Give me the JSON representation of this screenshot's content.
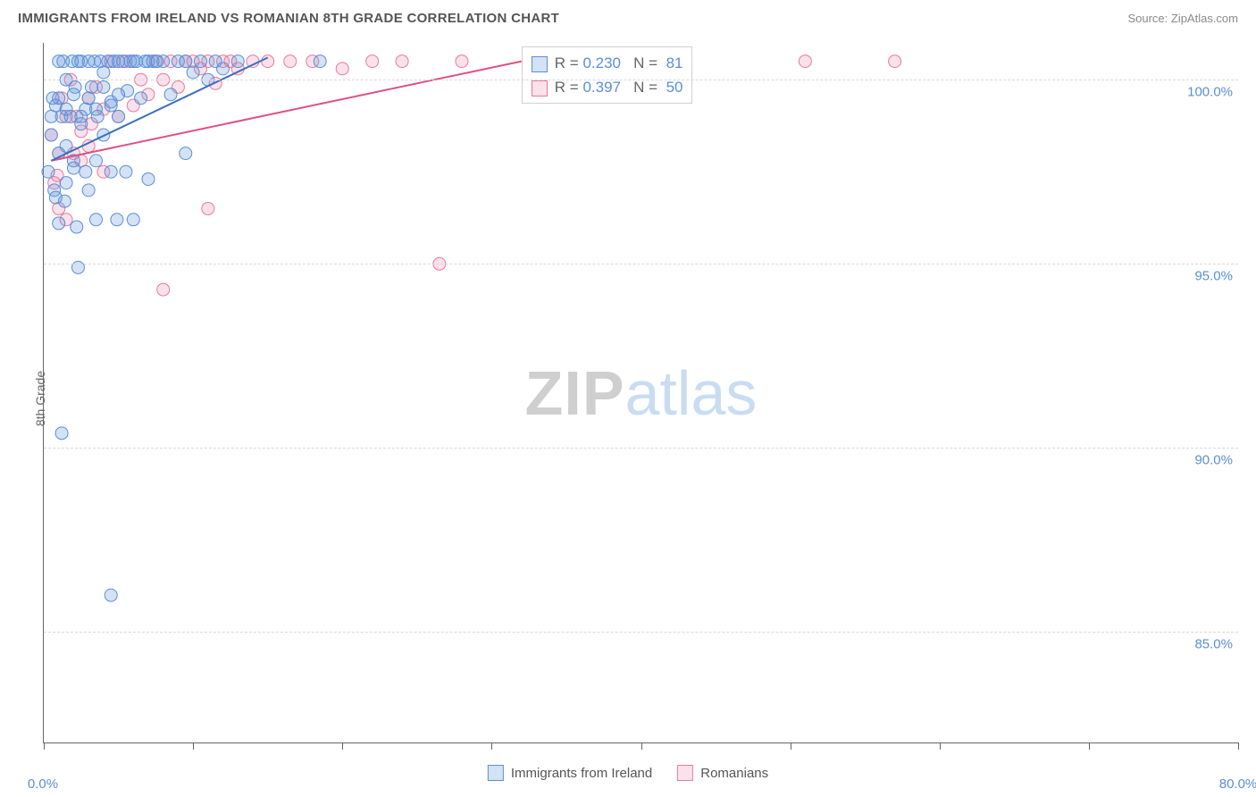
{
  "title": "IMMIGRANTS FROM IRELAND VS ROMANIAN 8TH GRADE CORRELATION CHART",
  "source_prefix": "Source: ",
  "source_name": "ZipAtlas.com",
  "y_axis_label": "8th Grade",
  "watermark": {
    "part1": "ZIP",
    "part2": "atlas"
  },
  "colors": {
    "series_a_fill": "rgba(100,150,220,0.28)",
    "series_a_stroke": "#5a8fd6",
    "series_b_fill": "rgba(235,120,160,0.22)",
    "series_b_stroke": "#e67aa0",
    "line_a": "#3a6fc0",
    "line_b": "#e04f84",
    "grid": "#d8d8d8",
    "axis": "#666666",
    "tick_text": "#5a8fd6",
    "title_text": "#555555",
    "source_text": "#8a8a8a",
    "bg": "#ffffff"
  },
  "chart": {
    "type": "scatter",
    "x_min": 0.0,
    "x_max": 80.0,
    "y_min": 82.0,
    "y_max": 101.0,
    "x_ticks": [
      0.0,
      10.0,
      20.0,
      30.0,
      40.0,
      50.0,
      60.0,
      70.0,
      80.0
    ],
    "x_tick_labels_shown": {
      "first": "0.0%",
      "last": "80.0%"
    },
    "y_gridlines": [
      85.0,
      90.0,
      95.0,
      100.0
    ],
    "y_tick_labels": [
      "85.0%",
      "90.0%",
      "95.0%",
      "100.0%"
    ],
    "marker_radius": 7,
    "line_width": 2
  },
  "stats_box": {
    "rows": [
      {
        "swatch": "a",
        "r_label": "R = ",
        "r": "0.230",
        "n_label": "N = ",
        "n": "81"
      },
      {
        "swatch": "b",
        "r_label": "R = ",
        "r": "0.397",
        "n_label": "N = ",
        "n": "50"
      }
    ]
  },
  "legend": {
    "items": [
      {
        "swatch": "a",
        "label": "Immigrants from Ireland"
      },
      {
        "swatch": "b",
        "label": "Romanians"
      }
    ]
  },
  "trend_lines": {
    "a": {
      "x1": 0.5,
      "y1": 97.8,
      "x2": 15.0,
      "y2": 100.6
    },
    "b": {
      "x1": 0.5,
      "y1": 97.8,
      "x2": 32.0,
      "y2": 100.5
    }
  },
  "series_a": [
    [
      0.3,
      97.5
    ],
    [
      0.5,
      98.5
    ],
    [
      0.7,
      97.0
    ],
    [
      0.8,
      99.3
    ],
    [
      1.0,
      98.0
    ],
    [
      1.0,
      100.5
    ],
    [
      0.6,
      99.5
    ],
    [
      1.2,
      99.0
    ],
    [
      1.3,
      100.5
    ],
    [
      1.5,
      98.2
    ],
    [
      1.5,
      100.0
    ],
    [
      1.8,
      99.0
    ],
    [
      1.9,
      100.5
    ],
    [
      2.0,
      97.6
    ],
    [
      2.1,
      99.8
    ],
    [
      2.3,
      100.5
    ],
    [
      2.5,
      98.8
    ],
    [
      2.5,
      100.5
    ],
    [
      2.8,
      99.2
    ],
    [
      3.0,
      100.5
    ],
    [
      3.0,
      97.0
    ],
    [
      3.2,
      99.8
    ],
    [
      3.4,
      100.5
    ],
    [
      3.6,
      99.0
    ],
    [
      3.8,
      100.5
    ],
    [
      4.0,
      100.2
    ],
    [
      4.0,
      98.5
    ],
    [
      4.3,
      100.5
    ],
    [
      4.5,
      99.4
    ],
    [
      4.7,
      100.5
    ],
    [
      5.0,
      100.5
    ],
    [
      5.0,
      99.0
    ],
    [
      5.3,
      100.5
    ],
    [
      5.6,
      99.7
    ],
    [
      5.8,
      100.5
    ],
    [
      6.0,
      100.5
    ],
    [
      6.2,
      100.5
    ],
    [
      6.5,
      99.5
    ],
    [
      6.8,
      100.5
    ],
    [
      7.0,
      100.5
    ],
    [
      7.3,
      100.5
    ],
    [
      7.6,
      100.5
    ],
    [
      8.0,
      100.5
    ],
    [
      8.5,
      99.6
    ],
    [
      18.5,
      100.5
    ],
    [
      9.5,
      98.0
    ],
    [
      1.0,
      96.1
    ],
    [
      1.4,
      96.7
    ],
    [
      2.2,
      96.0
    ],
    [
      0.8,
      96.8
    ],
    [
      3.5,
      96.2
    ],
    [
      4.9,
      96.2
    ],
    [
      6.0,
      96.2
    ],
    [
      1.5,
      97.2
    ],
    [
      2.0,
      97.8
    ],
    [
      2.8,
      97.5
    ],
    [
      3.5,
      97.8
    ],
    [
      4.5,
      97.5
    ],
    [
      5.5,
      97.5
    ],
    [
      7.0,
      97.3
    ],
    [
      0.5,
      99.0
    ],
    [
      1.0,
      99.5
    ],
    [
      1.5,
      99.2
    ],
    [
      2.0,
      99.6
    ],
    [
      2.5,
      99.0
    ],
    [
      3.0,
      99.5
    ],
    [
      3.5,
      99.2
    ],
    [
      4.0,
      99.8
    ],
    [
      4.5,
      99.3
    ],
    [
      5.0,
      99.6
    ],
    [
      1.2,
      90.4
    ],
    [
      4.5,
      86.0
    ],
    [
      2.3,
      94.9
    ],
    [
      9.0,
      100.5
    ],
    [
      9.5,
      100.5
    ],
    [
      10.0,
      100.2
    ],
    [
      10.5,
      100.5
    ],
    [
      11.0,
      100.0
    ],
    [
      11.5,
      100.5
    ],
    [
      12.0,
      100.3
    ],
    [
      13.0,
      100.5
    ]
  ],
  "series_b": [
    [
      0.5,
      98.5
    ],
    [
      0.7,
      97.2
    ],
    [
      1.0,
      98.0
    ],
    [
      1.2,
      99.5
    ],
    [
      1.5,
      99.0
    ],
    [
      1.8,
      100.0
    ],
    [
      2.0,
      98.0
    ],
    [
      2.2,
      99.0
    ],
    [
      2.5,
      98.6
    ],
    [
      0.9,
      97.4
    ],
    [
      3.0,
      99.5
    ],
    [
      3.2,
      98.8
    ],
    [
      3.5,
      99.8
    ],
    [
      4.0,
      99.2
    ],
    [
      4.5,
      100.5
    ],
    [
      5.0,
      99.0
    ],
    [
      5.5,
      100.5
    ],
    [
      6.0,
      99.3
    ],
    [
      6.5,
      100.0
    ],
    [
      7.0,
      99.6
    ],
    [
      7.5,
      100.5
    ],
    [
      8.0,
      100.0
    ],
    [
      8.5,
      100.5
    ],
    [
      9.0,
      99.8
    ],
    [
      9.5,
      100.5
    ],
    [
      10.0,
      100.5
    ],
    [
      10.5,
      100.3
    ],
    [
      11.0,
      100.5
    ],
    [
      11.5,
      99.9
    ],
    [
      12.0,
      100.5
    ],
    [
      12.5,
      100.5
    ],
    [
      13.0,
      100.3
    ],
    [
      14.0,
      100.5
    ],
    [
      15.0,
      100.5
    ],
    [
      16.5,
      100.5
    ],
    [
      18.0,
      100.5
    ],
    [
      20.0,
      100.3
    ],
    [
      22.0,
      100.5
    ],
    [
      24.0,
      100.5
    ],
    [
      28.0,
      100.5
    ],
    [
      51.0,
      100.5
    ],
    [
      57.0,
      100.5
    ],
    [
      26.5,
      95.0
    ],
    [
      11.0,
      96.5
    ],
    [
      8.0,
      94.3
    ],
    [
      1.5,
      96.2
    ],
    [
      4.0,
      97.5
    ],
    [
      1.0,
      96.5
    ],
    [
      2.5,
      97.8
    ],
    [
      3.0,
      98.2
    ]
  ]
}
